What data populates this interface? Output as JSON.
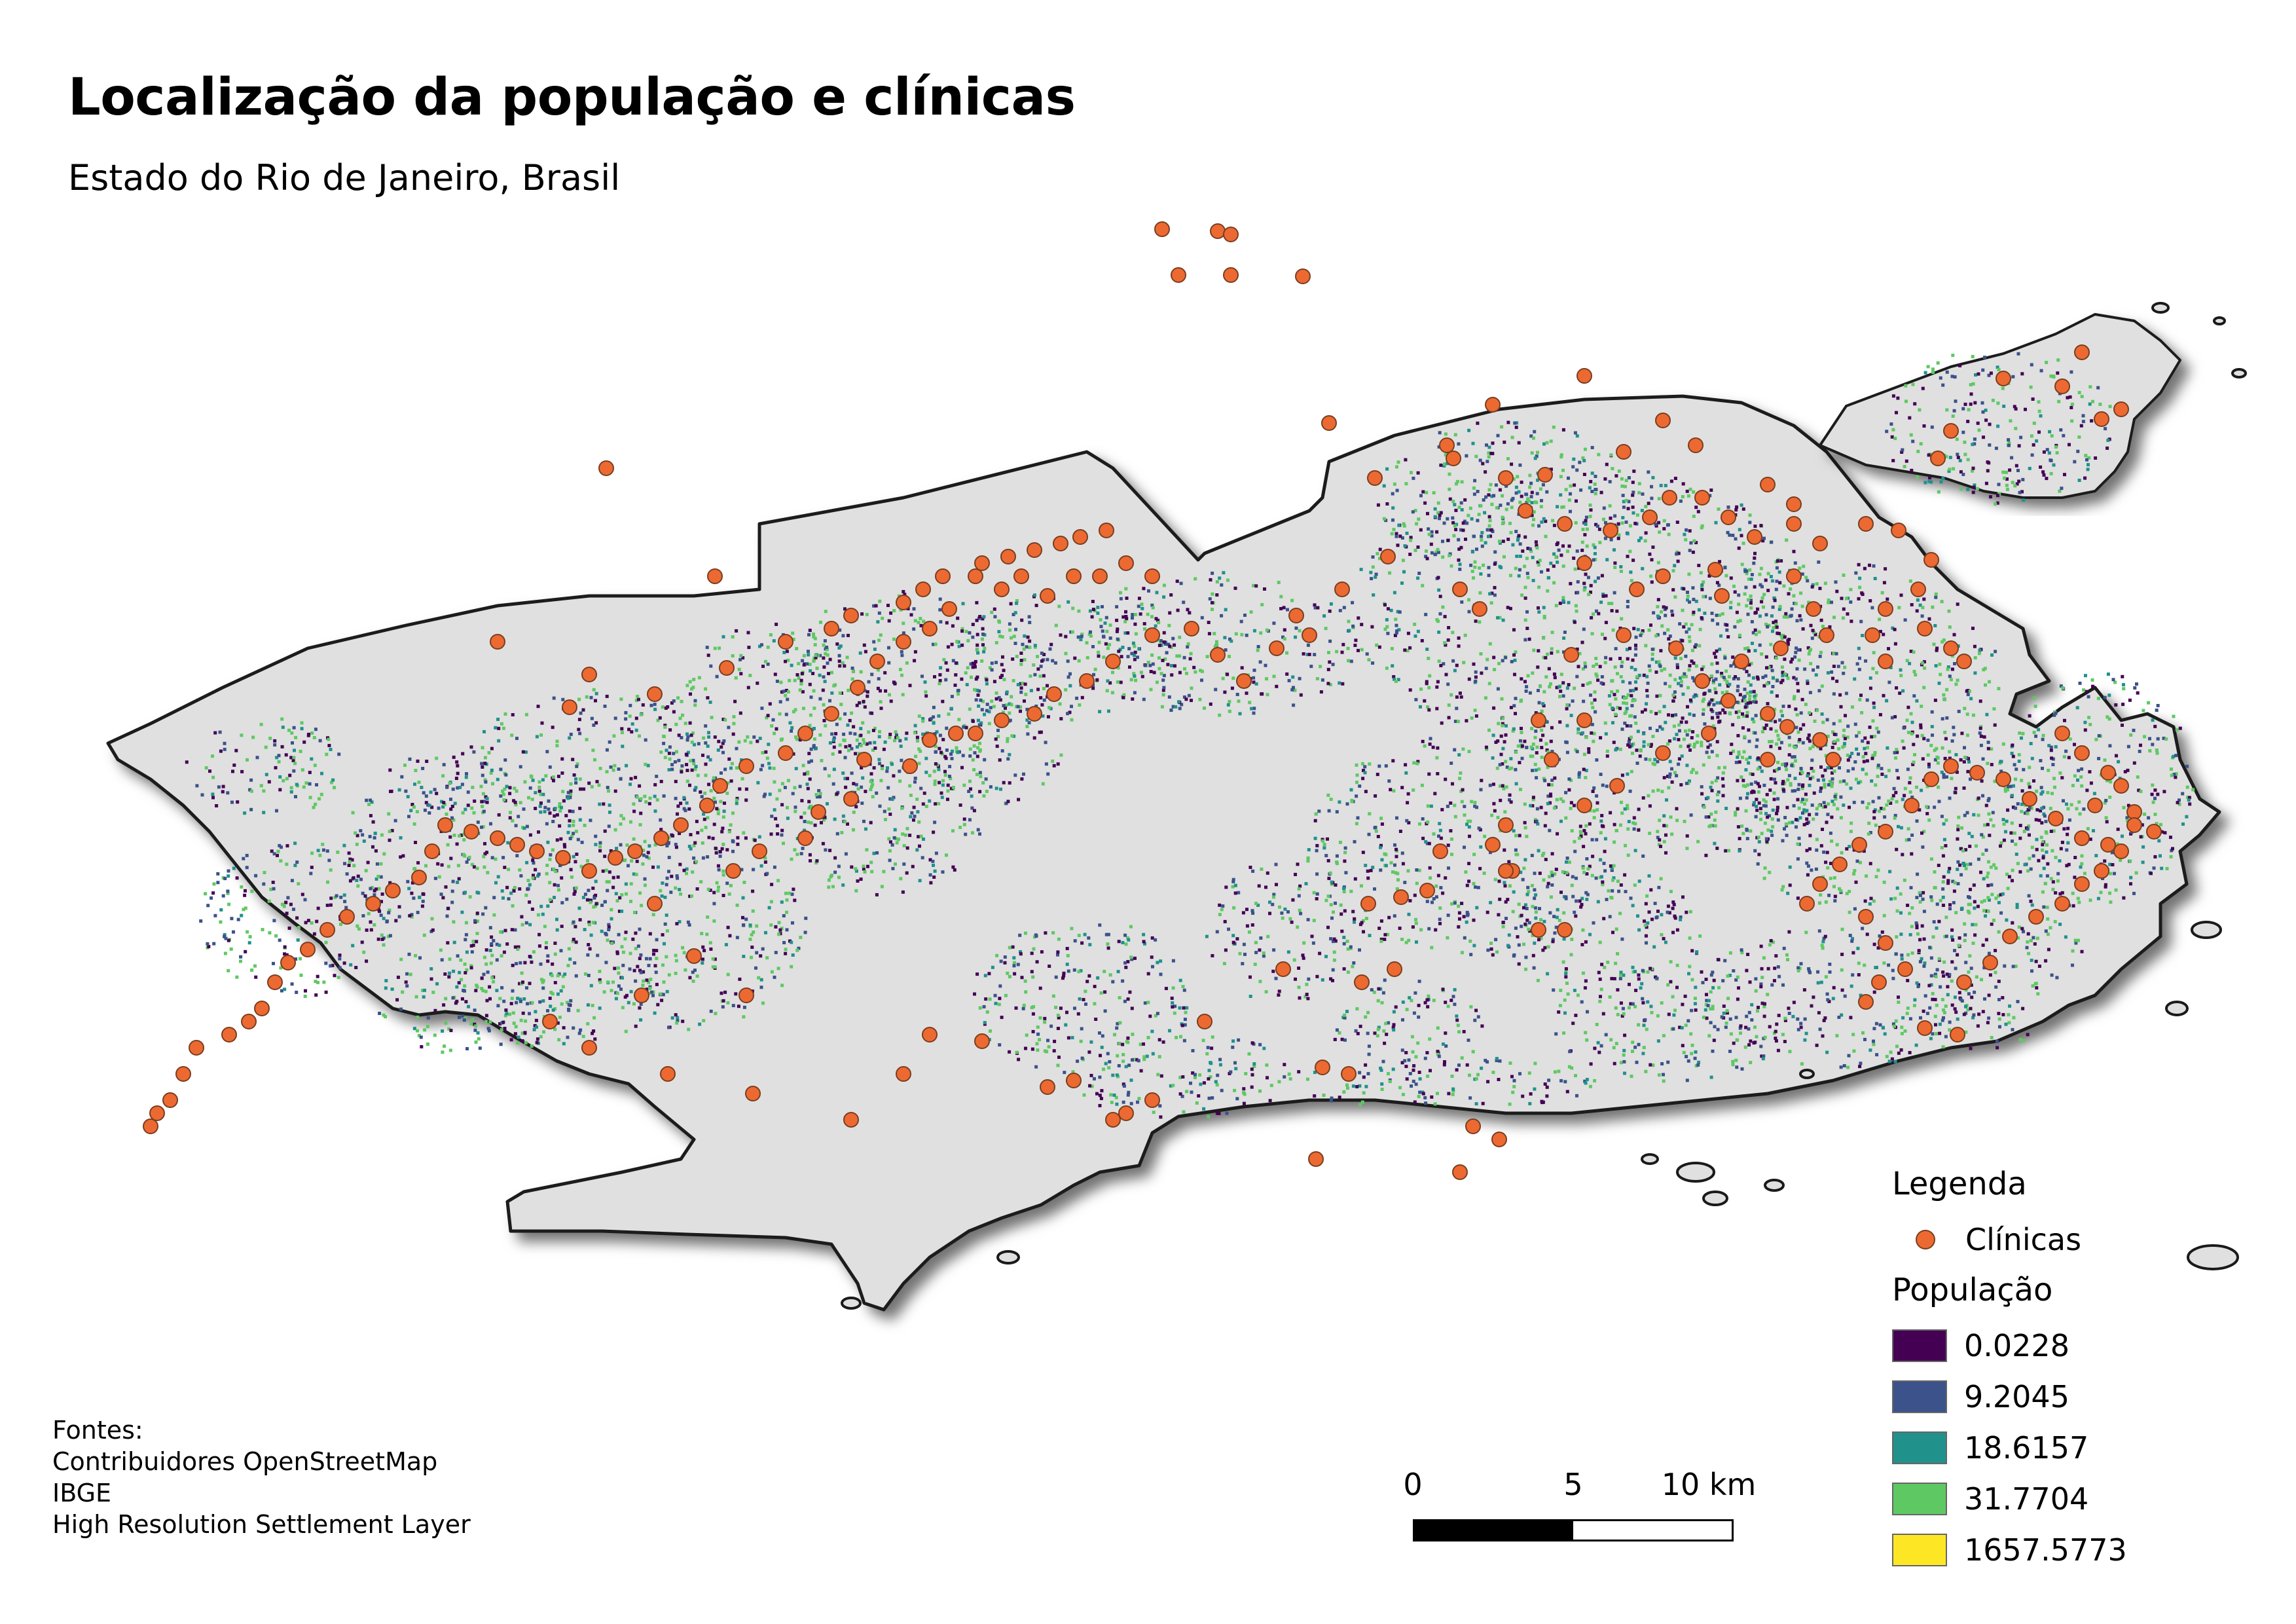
{
  "title": "Localização da população e clínicas",
  "subtitle": "Estado do Rio de Janeiro, Brasil",
  "legend": {
    "heading": "Legenda",
    "points_label": "Clínicas",
    "population_heading": "População",
    "classes": [
      {
        "label": "0.0228",
        "color": "#440154"
      },
      {
        "label": "9.2045",
        "color": "#3b528b"
      },
      {
        "label": "18.6157",
        "color": "#21918c"
      },
      {
        "label": "31.7704",
        "color": "#5ec962"
      },
      {
        "label": "1657.5773",
        "color": "#fde725"
      }
    ]
  },
  "sources": {
    "heading": "Fontes:",
    "items": [
      "Contribuidores OpenStreetMap",
      "IBGE",
      "High Resolution Settlement Layer"
    ]
  },
  "scalebar": {
    "labels": [
      "0",
      "5",
      "10 km"
    ]
  },
  "colors": {
    "land": "#e0e0e0",
    "outline": "#1a1a1a",
    "clinic": "#ec6a31",
    "clinic_stroke": "#7a3d20"
  }
}
